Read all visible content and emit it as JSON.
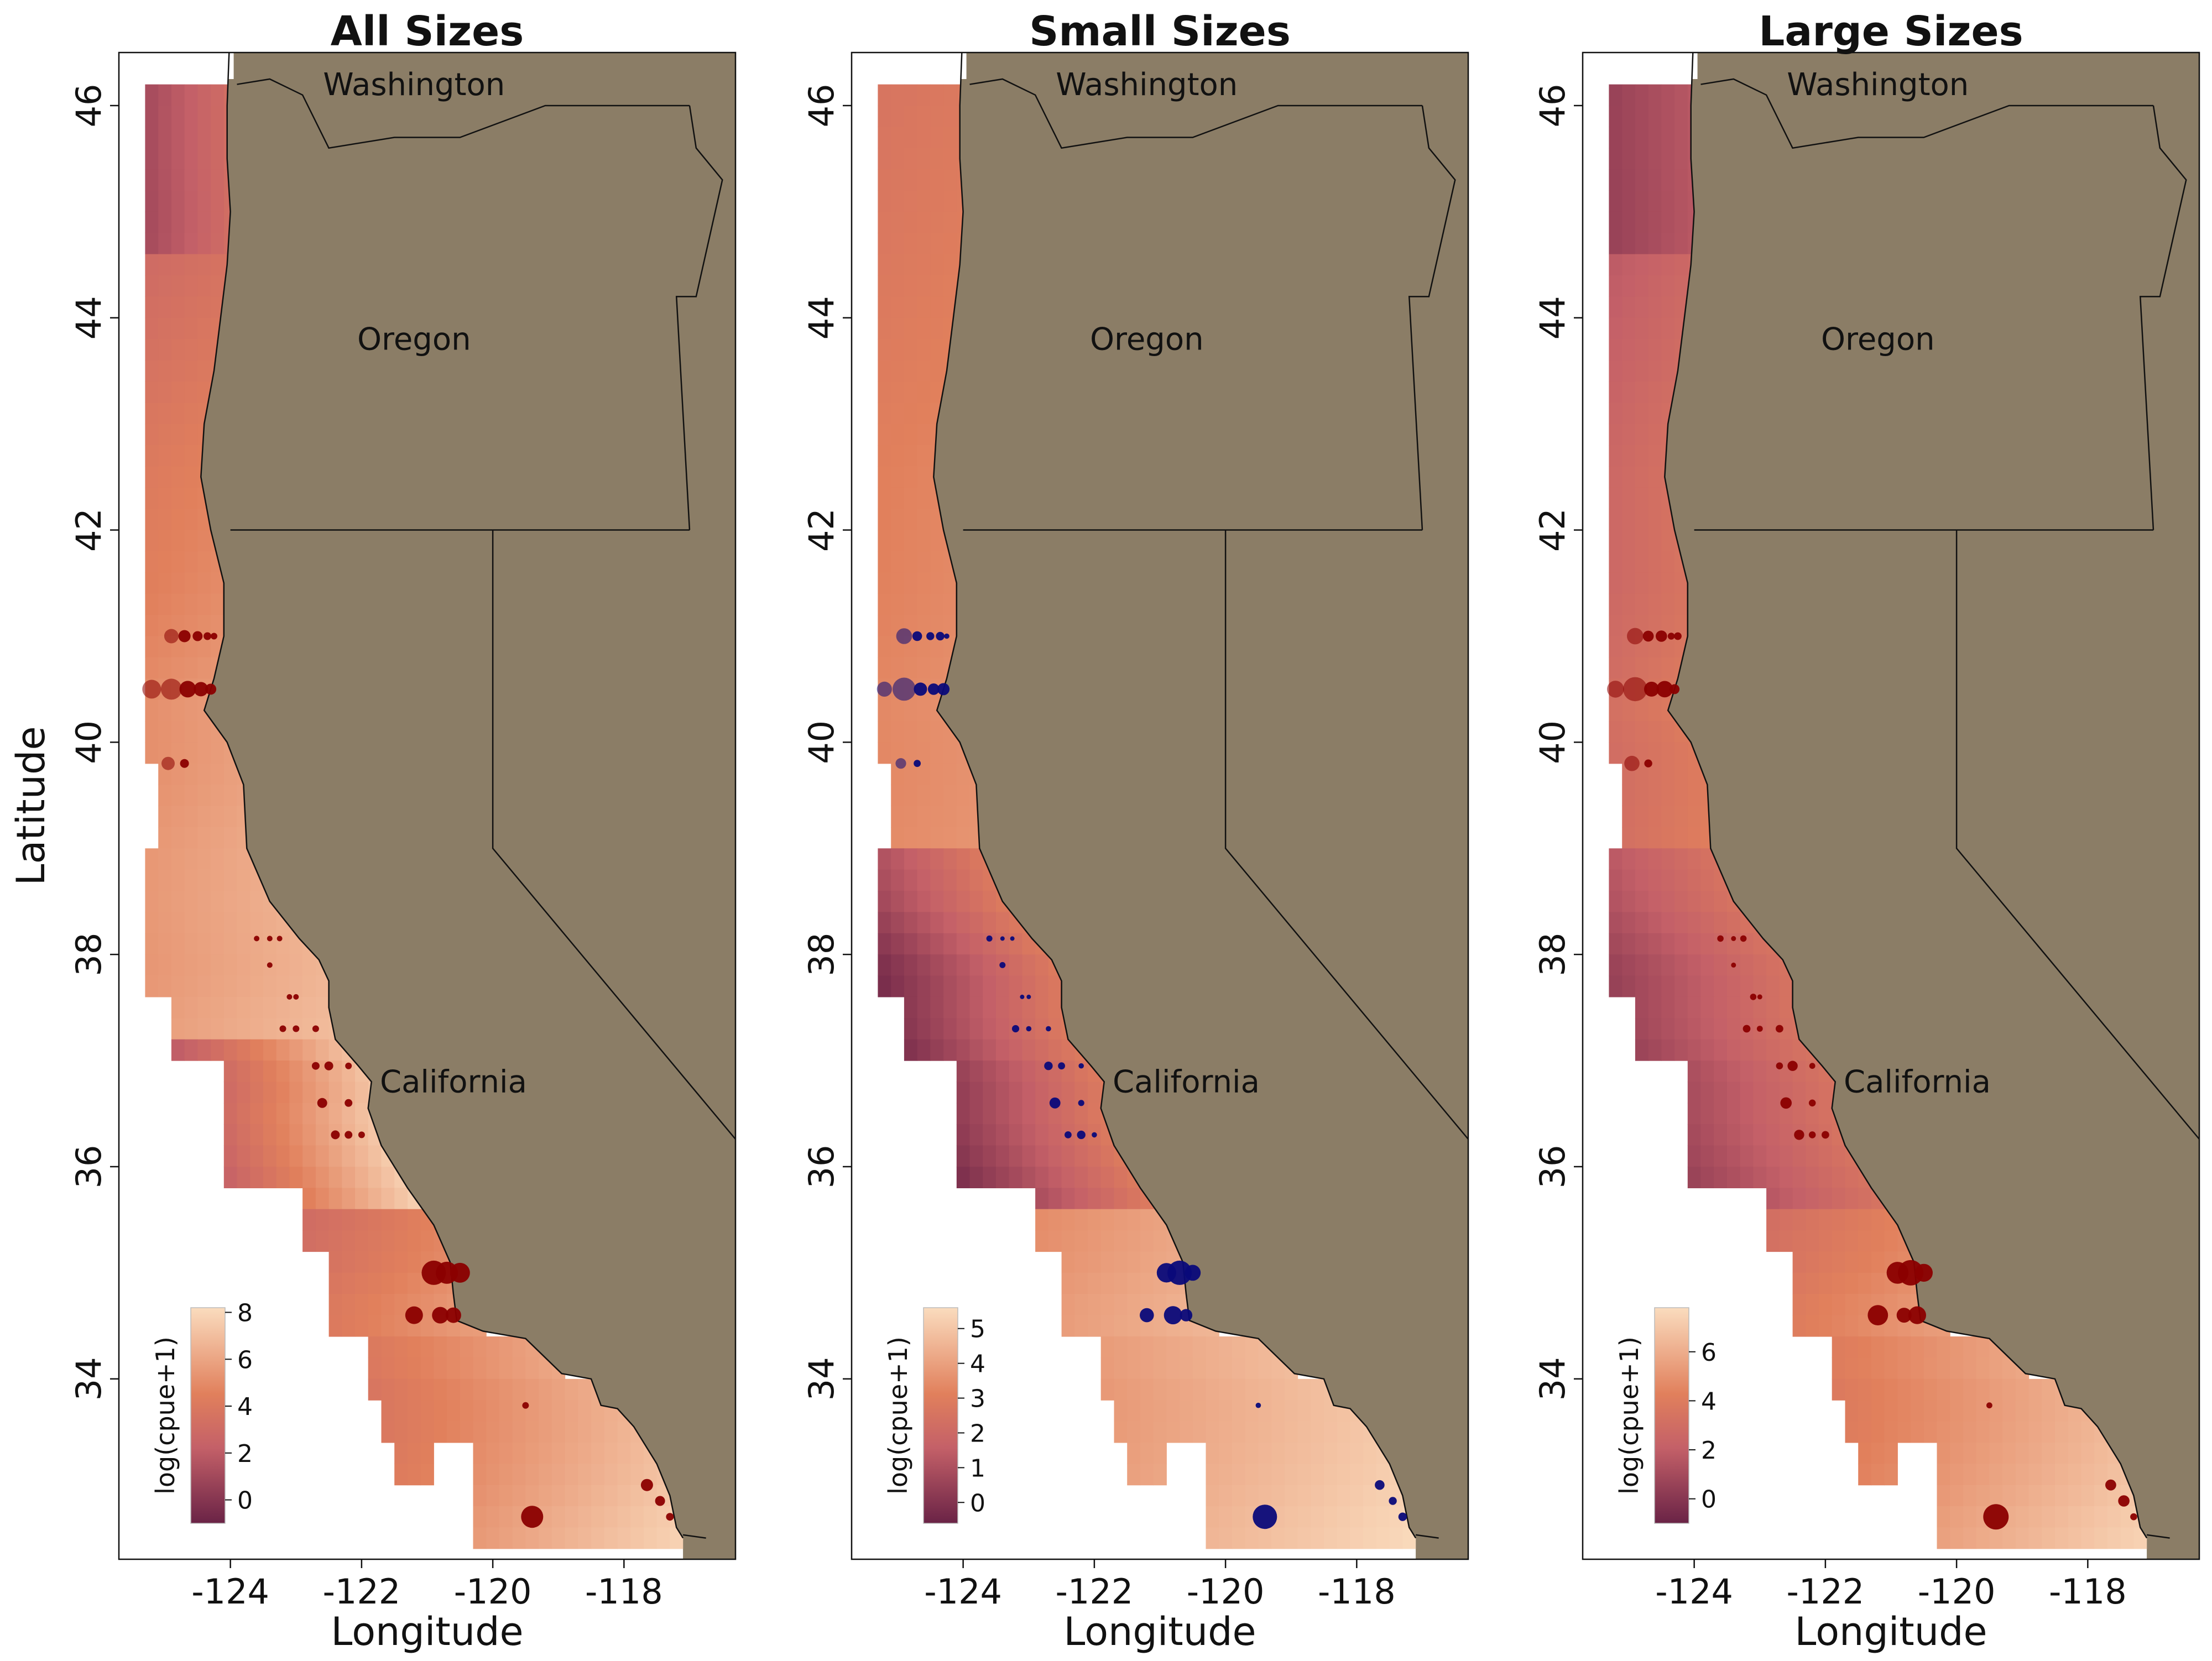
{
  "figure": {
    "panels": [
      {
        "title": "All Sizes",
        "point_color": "#8b0000",
        "ylabel": "Latitude",
        "xlabel": "Longitude",
        "colorbar": {
          "label": "log(cpue+1)",
          "range": [
            -1,
            8.2
          ],
          "ticks": [
            "0",
            "2",
            "4",
            "6",
            "8"
          ],
          "tick_values": [
            0,
            2,
            4,
            6,
            8
          ]
        }
      },
      {
        "title": "Small Sizes",
        "point_color": "#0a0a7a",
        "ylabel": "",
        "xlabel": "Longitude",
        "colorbar": {
          "label": "log(cpue+1)",
          "range": [
            -0.6,
            5.6
          ],
          "ticks": [
            "0",
            "1",
            "2",
            "3",
            "4",
            "5"
          ],
          "tick_values": [
            0,
            1,
            2,
            3,
            4,
            5
          ]
        }
      },
      {
        "title": "Large Sizes",
        "point_color": "#8b0000",
        "ylabel": "",
        "xlabel": "Longitude",
        "colorbar": {
          "label": "log(cpue+1)",
          "range": [
            -1,
            7.8
          ],
          "ticks": [
            "0",
            "2",
            "4",
            "6"
          ],
          "tick_values": [
            0,
            2,
            4,
            6
          ]
        }
      }
    ],
    "x_ticks": [
      "-124",
      "-122",
      "-120",
      "-118"
    ],
    "x_tick_values": [
      -124,
      -122,
      -120,
      -118
    ],
    "y_ticks": [
      "34",
      "36",
      "38",
      "40",
      "42",
      "44",
      "46"
    ],
    "y_tick_values": [
      34,
      36,
      38,
      40,
      42,
      44,
      46
    ],
    "lon_range": [
      -125.7,
      -116.3
    ],
    "lat_range": [
      32.3,
      46.5
    ],
    "state_labels": [
      "Washington",
      "Oregon",
      "California"
    ],
    "colors": {
      "land": "#8b7d66",
      "ocean_low": "#6a2346",
      "ocean_mid": "#e0805c",
      "ocean_high": "#fadcbe"
    }
  }
}
